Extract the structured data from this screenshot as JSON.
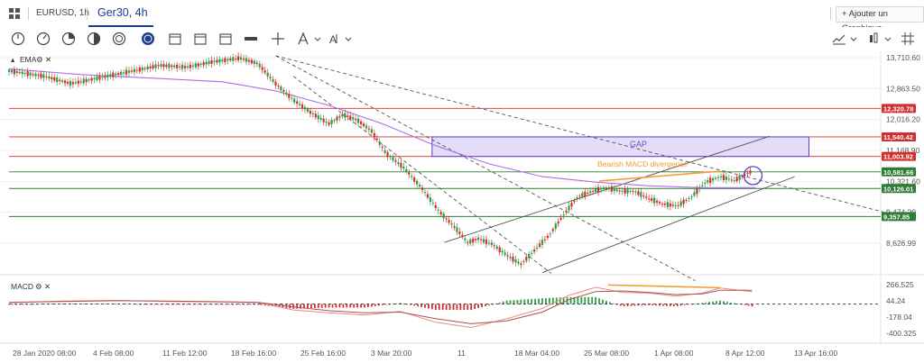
{
  "header": {
    "symbol_tab": "EURUSD, 1h",
    "active_tab": "Ger30, 4h",
    "add_chart_label": "+ Ajouter un Graphique"
  },
  "indicators": {
    "main_label": "EMA",
    "macd_label": "MACD"
  },
  "chart_data": {
    "type": "candlestick",
    "symbol": "Ger30",
    "timeframe": "4h",
    "y_ticks": [
      13710.6,
      12863.5,
      12016.2,
      11168.9,
      10321.6,
      9474.29,
      8626.99
    ],
    "x_tick_labels": [
      "28 Jan 2020 08:00",
      "4 Feb 08:00",
      "11 Feb 12:00",
      "18 Feb 16:00",
      "25 Feb 16:00",
      "3 Mar 20:00",
      "11",
      "18 Mar 04:00",
      "25 Mar 08:00",
      "1 Apr 08:00",
      "8 Apr 12:00",
      "13 Apr 16:00"
    ],
    "horizontal_levels": [
      {
        "value": 12320.78,
        "label": "12,320.78",
        "color": "#d32f2f"
      },
      {
        "value": 11540.42,
        "label": "11,540.42",
        "color": "#d32f2f"
      },
      {
        "value": 11003.92,
        "label": "11,003.92",
        "color": "#d32f2f"
      },
      {
        "value": 10581.66,
        "label": "10,581.66",
        "color": "#2e7d32"
      },
      {
        "value": 10126.01,
        "label": "10,126.01",
        "color": "#2e7d32"
      },
      {
        "value": 9357.85,
        "label": "9,357.85",
        "color": "#2e7d32"
      }
    ],
    "price_path": [
      [
        0,
        13350
      ],
      [
        20,
        13200
      ],
      [
        35,
        13000
      ],
      [
        50,
        13150
      ],
      [
        70,
        13350
      ],
      [
        85,
        13500
      ],
      [
        100,
        13450
      ],
      [
        115,
        13600
      ],
      [
        130,
        13700
      ],
      [
        140,
        13550
      ],
      [
        150,
        13000
      ],
      [
        160,
        12550
      ],
      [
        170,
        12200
      ],
      [
        180,
        11900
      ],
      [
        188,
        12150
      ],
      [
        196,
        12000
      ],
      [
        204,
        11700
      ],
      [
        212,
        11100
      ],
      [
        222,
        10700
      ],
      [
        232,
        10150
      ],
      [
        242,
        9500
      ],
      [
        252,
        9000
      ],
      [
        258,
        8650
      ],
      [
        264,
        8750
      ],
      [
        272,
        8600
      ],
      [
        280,
        8300
      ],
      [
        288,
        8050
      ],
      [
        296,
        8450
      ],
      [
        304,
        8850
      ],
      [
        312,
        9400
      ],
      [
        320,
        9900
      ],
      [
        328,
        10050
      ],
      [
        336,
        10150
      ],
      [
        344,
        10050
      ],
      [
        352,
        10050
      ],
      [
        360,
        9850
      ],
      [
        368,
        9700
      ],
      [
        376,
        9650
      ],
      [
        384,
        9900
      ],
      [
        392,
        10300
      ],
      [
        400,
        10450
      ],
      [
        408,
        10350
      ],
      [
        414,
        10500
      ],
      [
        418,
        10600
      ]
    ],
    "ema_path": [
      [
        0,
        13400
      ],
      [
        40,
        13250
      ],
      [
        80,
        13150
      ],
      [
        120,
        13050
      ],
      [
        150,
        12800
      ],
      [
        180,
        12400
      ],
      [
        210,
        11900
      ],
      [
        240,
        11300
      ],
      [
        270,
        10800
      ],
      [
        300,
        10450
      ],
      [
        330,
        10300
      ],
      [
        360,
        10200
      ],
      [
        390,
        10150
      ],
      [
        420,
        10150
      ]
    ],
    "macd": {
      "y_ticks": [
        266.525,
        44.24,
        -178.04,
        -400.325
      ],
      "macd_path": [
        [
          0,
          20
        ],
        [
          30,
          40
        ],
        [
          60,
          50
        ],
        [
          90,
          35
        ],
        [
          120,
          30
        ],
        [
          140,
          20
        ],
        [
          160,
          -80
        ],
        [
          180,
          -120
        ],
        [
          200,
          -150
        ],
        [
          220,
          -100
        ],
        [
          240,
          -250
        ],
        [
          260,
          -320
        ],
        [
          280,
          -200
        ],
        [
          300,
          -60
        ],
        [
          315,
          120
        ],
        [
          330,
          230
        ],
        [
          345,
          160
        ],
        [
          360,
          150
        ],
        [
          375,
          110
        ],
        [
          390,
          150
        ],
        [
          400,
          220
        ],
        [
          418,
          170
        ]
      ],
      "signal_path": [
        [
          0,
          25
        ],
        [
          30,
          35
        ],
        [
          60,
          45
        ],
        [
          90,
          40
        ],
        [
          120,
          32
        ],
        [
          140,
          25
        ],
        [
          160,
          -40
        ],
        [
          180,
          -90
        ],
        [
          200,
          -120
        ],
        [
          220,
          -110
        ],
        [
          240,
          -200
        ],
        [
          260,
          -270
        ],
        [
          280,
          -230
        ],
        [
          300,
          -110
        ],
        [
          315,
          60
        ],
        [
          330,
          170
        ],
        [
          345,
          180
        ],
        [
          360,
          160
        ],
        [
          375,
          130
        ],
        [
          390,
          140
        ],
        [
          400,
          190
        ],
        [
          418,
          190
        ]
      ]
    },
    "annotations": {
      "gap_label": "GAP",
      "divergence_label": "Bearish MACD divergence"
    }
  },
  "colors": {
    "accent": "#1a3c8c",
    "bull": "#2e9e46",
    "bear": "#d32f2f",
    "ema": "#b06ce6",
    "gap_fill": "#d9d2f5",
    "divergence": "#f39c32"
  }
}
